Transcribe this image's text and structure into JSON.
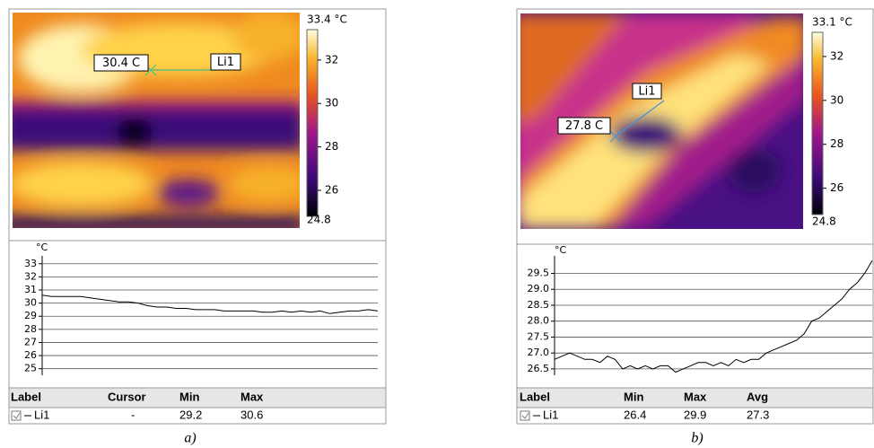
{
  "chart_data": [
    {
      "type": "line",
      "ylabel": "°C",
      "color": "#000000",
      "grid": true,
      "values": [
        30.6,
        30.5,
        30.5,
        30.5,
        30.5,
        30.4,
        30.3,
        30.2,
        30.1,
        30.1,
        30.0,
        29.8,
        29.7,
        29.7,
        29.6,
        29.6,
        29.5,
        29.5,
        29.5,
        29.4,
        29.4,
        29.4,
        29.4,
        29.3,
        29.3,
        29.4,
        29.3,
        29.4,
        29.3,
        29.4,
        29.2,
        29.3,
        29.4,
        29.4,
        29.5,
        29.4
      ],
      "ylim": [
        24.5,
        33.6
      ],
      "yticks": [
        25,
        26,
        27,
        28,
        29,
        30,
        31,
        32,
        33
      ]
    },
    {
      "type": "line",
      "ylabel": "°C",
      "color": "#000000",
      "grid": true,
      "values": [
        26.8,
        26.9,
        27.0,
        26.9,
        26.8,
        26.8,
        26.7,
        26.9,
        26.8,
        26.5,
        26.6,
        26.5,
        26.6,
        26.5,
        26.6,
        26.6,
        26.4,
        26.5,
        26.6,
        26.7,
        26.7,
        26.6,
        26.7,
        26.6,
        26.8,
        26.7,
        26.8,
        26.8,
        27.0,
        27.1,
        27.2,
        27.3,
        27.4,
        27.6,
        28.0,
        28.1,
        28.3,
        28.5,
        28.7,
        29.0,
        29.2,
        29.5,
        29.9
      ],
      "ylim": [
        26.3,
        30.05
      ],
      "yticks": [
        26.5,
        {
          "value": 27,
          "label": "27.0"
        },
        27.5,
        {
          "value": 28,
          "label": "28.0"
        },
        28.5,
        {
          "value": 29,
          "label": "29.0"
        },
        29.5
      ]
    }
  ],
  "panels": [
    {
      "annotations": [
        "30.4 C",
        "Li1"
      ],
      "colorbar": {
        "max": {
          "value": 33.4,
          "label": "33.4 °C"
        },
        "min": {
          "value": 24.8,
          "label": "24.8"
        },
        "ticks": [
          32,
          30,
          28,
          26
        ]
      },
      "table": {
        "header": [
          "Label",
          "Cursor",
          "Min",
          "Max"
        ],
        "rows": [
          [
            "Li1",
            "-",
            29.2,
            30.6
          ]
        ]
      },
      "caption": "a)"
    },
    {
      "annotations": [
        "Li1",
        "27.8 C"
      ],
      "colorbar": {
        "max": {
          "value": 33.1,
          "label": "33.1 °C"
        },
        "min": {
          "value": 24.8,
          "label": "24.8"
        },
        "ticks": [
          32,
          30,
          28,
          26
        ]
      },
      "table": {
        "header": [
          "Label",
          "Min",
          "Max",
          "Avg"
        ],
        "rows": [
          [
            "Li1",
            26.4,
            29.9,
            27.3
          ]
        ]
      },
      "caption": "b)"
    }
  ]
}
